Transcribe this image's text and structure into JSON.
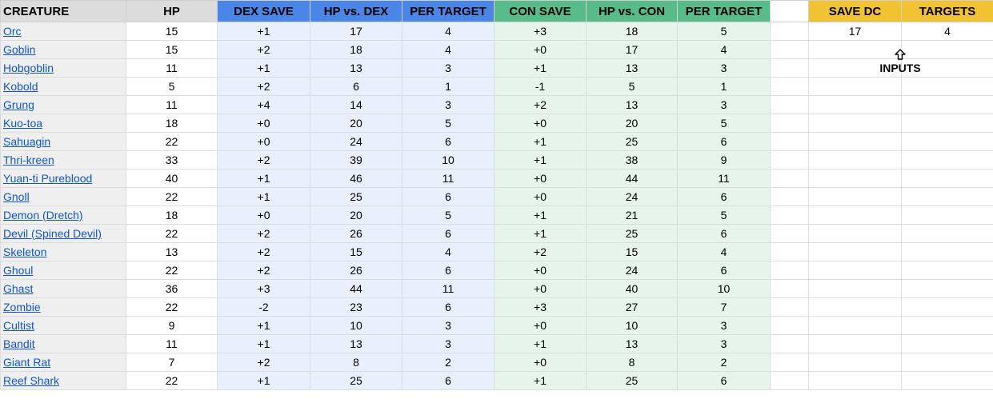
{
  "headers": {
    "creature": "CREATURE",
    "hp": "HP",
    "dex_save": "DEX SAVE",
    "hp_vs_dex": "HP vs. DEX",
    "per_target_dex": "PER TARGET",
    "con_save": "CON SAVE",
    "hp_vs_con": "HP vs. CON",
    "per_target_con": "PER TARGET",
    "save_dc": "SAVE DC",
    "targets": "TARGETS"
  },
  "inputs": {
    "save_dc": "17",
    "targets": "4",
    "label": "INPUTS",
    "icon": "up-arrow-icon"
  },
  "colors": {
    "dex_header": "#4a86e8",
    "con_header": "#57bb8a",
    "input_header": "#f1c232",
    "link": "#1155cc"
  },
  "rows": [
    {
      "name": "Orc",
      "hp": "15",
      "dex_save": "+1",
      "hp_vs_dex": "17",
      "per_target_dex": "4",
      "con_save": "+3",
      "hp_vs_con": "18",
      "per_target_con": "5"
    },
    {
      "name": "Goblin",
      "hp": "15",
      "dex_save": "+2",
      "hp_vs_dex": "18",
      "per_target_dex": "4",
      "con_save": "+0",
      "hp_vs_con": "17",
      "per_target_con": "4"
    },
    {
      "name": "Hobgoblin",
      "hp": "11",
      "dex_save": "+1",
      "hp_vs_dex": "13",
      "per_target_dex": "3",
      "con_save": "+1",
      "hp_vs_con": "13",
      "per_target_con": "3"
    },
    {
      "name": "Kobold",
      "hp": "5",
      "dex_save": "+2",
      "hp_vs_dex": "6",
      "per_target_dex": "1",
      "con_save": "-1",
      "hp_vs_con": "5",
      "per_target_con": "1"
    },
    {
      "name": "Grung",
      "hp": "11",
      "dex_save": "+4",
      "hp_vs_dex": "14",
      "per_target_dex": "3",
      "con_save": "+2",
      "hp_vs_con": "13",
      "per_target_con": "3"
    },
    {
      "name": "Kuo-toa",
      "hp": "18",
      "dex_save": "+0",
      "hp_vs_dex": "20",
      "per_target_dex": "5",
      "con_save": "+0",
      "hp_vs_con": "20",
      "per_target_con": "5"
    },
    {
      "name": "Sahuagin",
      "hp": "22",
      "dex_save": "+0",
      "hp_vs_dex": "24",
      "per_target_dex": "6",
      "con_save": "+1",
      "hp_vs_con": "25",
      "per_target_con": "6"
    },
    {
      "name": "Thri-kreen",
      "hp": "33",
      "dex_save": "+2",
      "hp_vs_dex": "39",
      "per_target_dex": "10",
      "con_save": "+1",
      "hp_vs_con": "38",
      "per_target_con": "9"
    },
    {
      "name": "Yuan-ti Pureblood",
      "hp": "40",
      "dex_save": "+1",
      "hp_vs_dex": "46",
      "per_target_dex": "11",
      "con_save": "+0",
      "hp_vs_con": "44",
      "per_target_con": "11"
    },
    {
      "name": "Gnoll",
      "hp": "22",
      "dex_save": "+1",
      "hp_vs_dex": "25",
      "per_target_dex": "6",
      "con_save": "+0",
      "hp_vs_con": "24",
      "per_target_con": "6"
    },
    {
      "name": "Demon (Dretch)",
      "hp": "18",
      "dex_save": "+0",
      "hp_vs_dex": "20",
      "per_target_dex": "5",
      "con_save": "+1",
      "hp_vs_con": "21",
      "per_target_con": "5"
    },
    {
      "name": "Devil (Spined Devil)",
      "hp": "22",
      "dex_save": "+2",
      "hp_vs_dex": "26",
      "per_target_dex": "6",
      "con_save": "+1",
      "hp_vs_con": "25",
      "per_target_con": "6"
    },
    {
      "name": "Skeleton",
      "hp": "13",
      "dex_save": "+2",
      "hp_vs_dex": "15",
      "per_target_dex": "4",
      "con_save": "+2",
      "hp_vs_con": "15",
      "per_target_con": "4"
    },
    {
      "name": "Ghoul",
      "hp": "22",
      "dex_save": "+2",
      "hp_vs_dex": "26",
      "per_target_dex": "6",
      "con_save": "+0",
      "hp_vs_con": "24",
      "per_target_con": "6"
    },
    {
      "name": "Ghast",
      "hp": "36",
      "dex_save": "+3",
      "hp_vs_dex": "44",
      "per_target_dex": "11",
      "con_save": "+0",
      "hp_vs_con": "40",
      "per_target_con": "10"
    },
    {
      "name": "Zombie",
      "hp": "22",
      "dex_save": "-2",
      "hp_vs_dex": "23",
      "per_target_dex": "6",
      "con_save": "+3",
      "hp_vs_con": "27",
      "per_target_con": "7"
    },
    {
      "name": "Cultist",
      "hp": "9",
      "dex_save": "+1",
      "hp_vs_dex": "10",
      "per_target_dex": "3",
      "con_save": "+0",
      "hp_vs_con": "10",
      "per_target_con": "3"
    },
    {
      "name": "Bandit",
      "hp": "11",
      "dex_save": "+1",
      "hp_vs_dex": "13",
      "per_target_dex": "3",
      "con_save": "+1",
      "hp_vs_con": "13",
      "per_target_con": "3"
    },
    {
      "name": "Giant Rat",
      "hp": "7",
      "dex_save": "+2",
      "hp_vs_dex": "8",
      "per_target_dex": "2",
      "con_save": "+0",
      "hp_vs_con": "8",
      "per_target_con": "2"
    },
    {
      "name": "Reef Shark",
      "hp": "22",
      "dex_save": "+1",
      "hp_vs_dex": "25",
      "per_target_dex": "6",
      "con_save": "+1",
      "hp_vs_con": "25",
      "per_target_con": "6"
    }
  ]
}
